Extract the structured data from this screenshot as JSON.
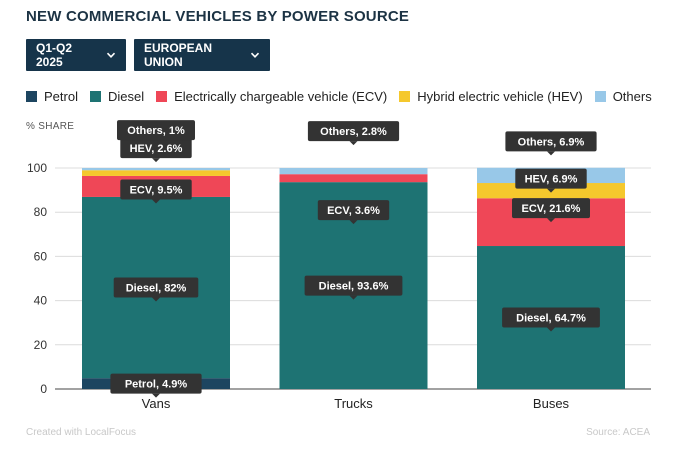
{
  "title": "NEW COMMERCIAL VEHICLES BY POWER SOURCE",
  "filters": [
    {
      "label": "Q1-Q2 2025"
    },
    {
      "label": "EUROPEAN UNION"
    }
  ],
  "footer": {
    "credit": "Created with LocalFocus",
    "source": "Source: ACEA"
  },
  "chart_data": {
    "type": "bar",
    "stacked": true,
    "ylabel": "% SHARE",
    "ylim": [
      0,
      100
    ],
    "yticks": [
      0,
      20,
      40,
      60,
      80,
      100
    ],
    "grid": true,
    "legend_position": "top",
    "categories": [
      "Vans",
      "Trucks",
      "Buses"
    ],
    "series": [
      {
        "name": "Petrol",
        "color": "#1d4560",
        "values": [
          4.9,
          0,
          0
        ],
        "labels": [
          "Petrol, 4.9%",
          "",
          ""
        ]
      },
      {
        "name": "Diesel",
        "color": "#1e7373",
        "values": [
          82,
          93.6,
          64.7
        ],
        "labels": [
          "Diesel, 82%",
          "Diesel, 93.6%",
          "Diesel, 64.7%"
        ]
      },
      {
        "name": "Electrically chargeable vehicle (ECV)",
        "color": "#ef4757",
        "values": [
          9.5,
          3.6,
          21.6
        ],
        "labels": [
          "ECV, 9.5%",
          "ECV, 3.6%",
          "ECV, 21.6%"
        ]
      },
      {
        "name": "Hybrid electric vehicle (HEV)",
        "color": "#f5c82d",
        "values": [
          2.6,
          0,
          6.9
        ],
        "labels": [
          "HEV, 2.6%",
          "",
          "HEV, 6.9%"
        ]
      },
      {
        "name": "Others",
        "color": "#98c8e8",
        "values": [
          1,
          2.8,
          6.9
        ],
        "labels": [
          "Others, 1%",
          "Others, 2.8%",
          "Others, 6.9%"
        ]
      }
    ]
  }
}
